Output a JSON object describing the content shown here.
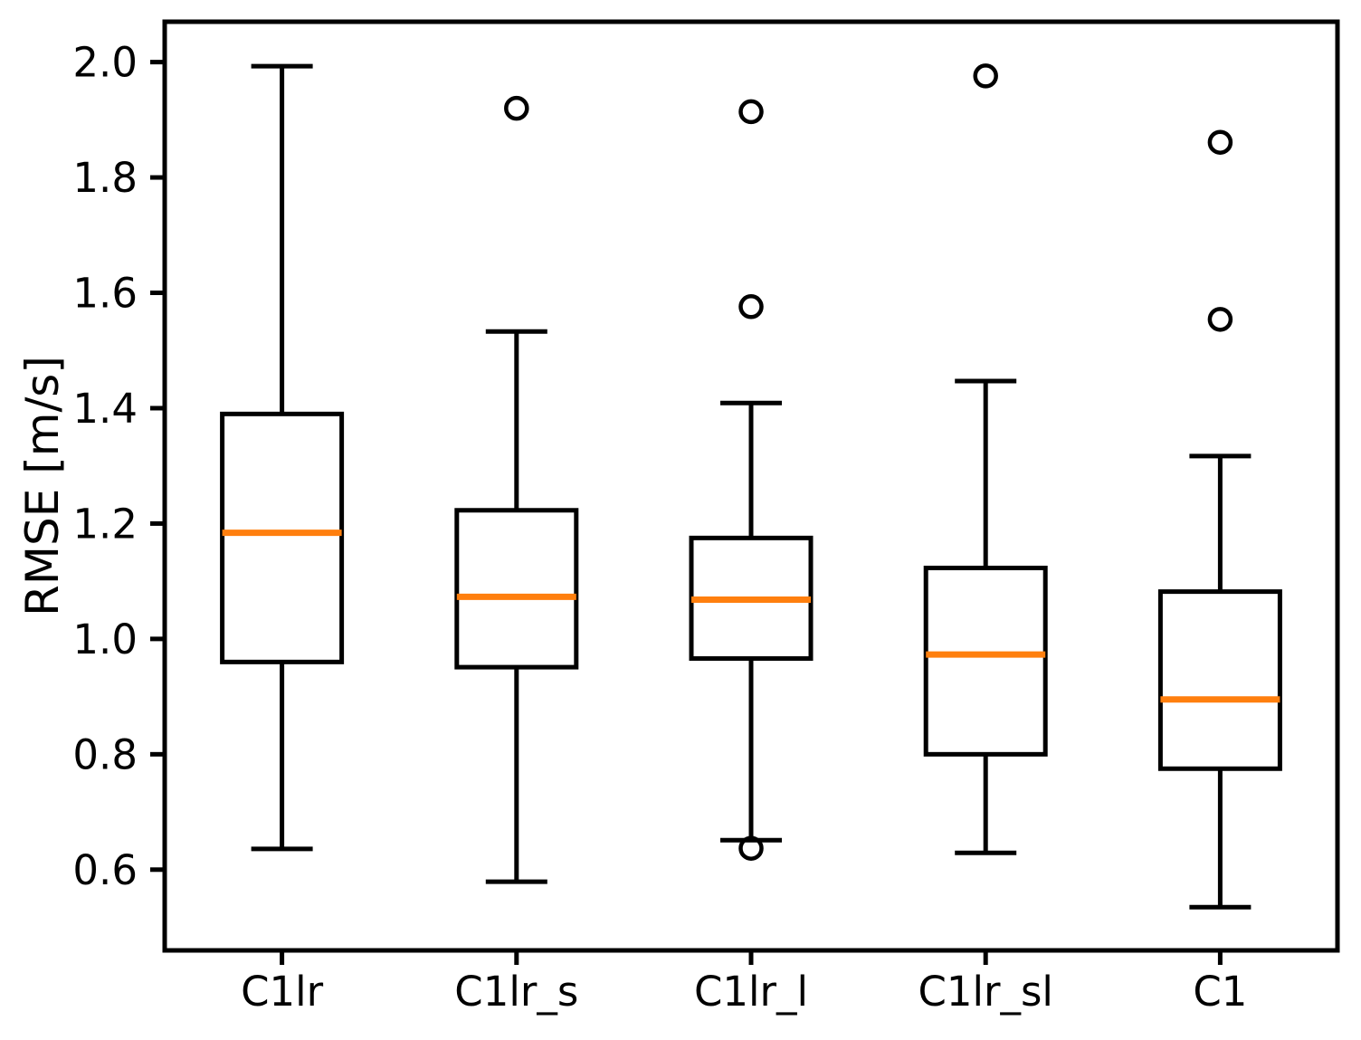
{
  "chart_data": {
    "type": "boxplot",
    "ylabel": "RMSE [m/s]",
    "categories": [
      "C1lr",
      "C1lr_s",
      "C1lr_l",
      "C1lr_sl",
      "C1"
    ],
    "yticks": [
      0.6,
      0.8,
      1.0,
      1.2,
      1.4,
      1.6,
      1.8,
      2.0
    ],
    "ytick_labels": [
      "0.6",
      "0.8",
      "1.0",
      "1.2",
      "1.4",
      "1.6",
      "1.8",
      "2.0"
    ],
    "ylim": [
      0.46,
      2.07
    ],
    "grid": false,
    "legend": "none",
    "colors": {
      "box": "#000000",
      "whisker": "#000000",
      "median": "#ff7f0e",
      "outlier_stroke": "#000000",
      "background": "#ffffff"
    },
    "series": [
      {
        "label": "C1lr",
        "whisker_low": 0.636,
        "q1": 0.96,
        "median": 1.184,
        "q3": 1.39,
        "whisker_high": 1.993,
        "outliers": []
      },
      {
        "label": "C1lr_s",
        "whisker_low": 0.579,
        "q1": 0.951,
        "median": 1.073,
        "q3": 1.223,
        "whisker_high": 1.533,
        "outliers": [
          1.92
        ]
      },
      {
        "label": "C1lr_l",
        "whisker_low": 0.651,
        "q1": 0.966,
        "median": 1.068,
        "q3": 1.175,
        "whisker_high": 1.409,
        "outliers": [
          1.914,
          1.576,
          0.637
        ]
      },
      {
        "label": "C1lr_sl",
        "whisker_low": 0.629,
        "q1": 0.8,
        "median": 0.973,
        "q3": 1.123,
        "whisker_high": 1.447,
        "outliers": [
          1.976
        ]
      },
      {
        "label": "C1",
        "whisker_low": 0.535,
        "q1": 0.775,
        "median": 0.895,
        "q3": 1.082,
        "whisker_high": 1.317,
        "outliers": [
          1.861,
          1.554
        ]
      }
    ]
  }
}
